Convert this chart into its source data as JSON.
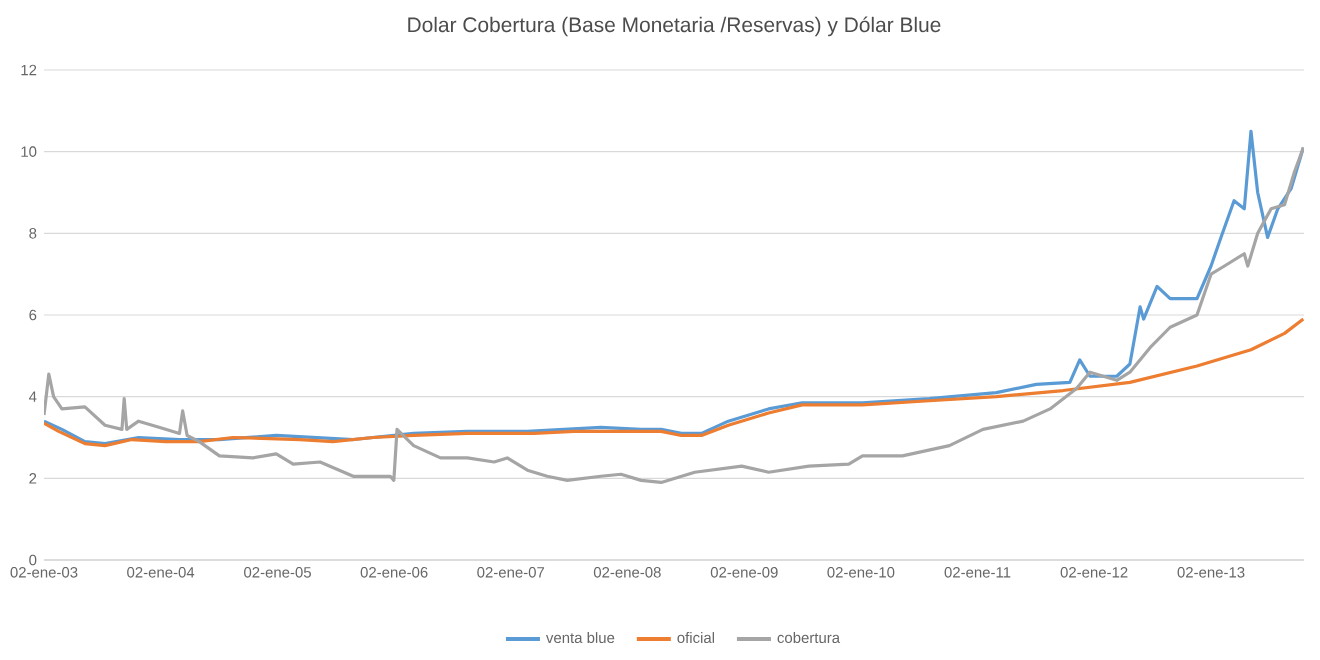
{
  "chart_data": {
    "type": "line",
    "title": "Dolar Cobertura (Base Monetaria /Reservas) y Dólar Blue",
    "xlim": [
      "2003-01-02",
      "2013-10-20"
    ],
    "ylim": [
      0,
      12
    ],
    "yticks": [
      0,
      2,
      4,
      6,
      8,
      10,
      12
    ],
    "xticks": [
      {
        "value": "2003-01-02",
        "label": "02-ene-03"
      },
      {
        "value": "2004-01-02",
        "label": "02-ene-04"
      },
      {
        "value": "2005-01-02",
        "label": "02-ene-05"
      },
      {
        "value": "2006-01-02",
        "label": "02-ene-06"
      },
      {
        "value": "2007-01-02",
        "label": "02-ene-07"
      },
      {
        "value": "2008-01-02",
        "label": "02-ene-08"
      },
      {
        "value": "2009-01-02",
        "label": "02-ene-09"
      },
      {
        "value": "2010-01-02",
        "label": "02-ene-10"
      },
      {
        "value": "2011-01-02",
        "label": "02-ene-11"
      },
      {
        "value": "2012-01-02",
        "label": "02-ene-12"
      },
      {
        "value": "2013-01-02",
        "label": "02-ene-13"
      }
    ],
    "grid": "y",
    "legend": "bottom",
    "marker": "none",
    "line_style": "solid",
    "series": [
      {
        "name": "venta blue",
        "color": "#5b9bd5",
        "x": [
          "2003-01-02",
          "2003-02-27",
          "2003-05-10",
          "2003-07-12",
          "2003-10-25",
          "2004-03-01",
          "2004-07-04",
          "2004-12-29",
          "2005-08-27",
          "2006-03-04",
          "2006-08-19",
          "2007-02-23",
          "2007-10-11",
          "2008-02-14",
          "2008-04-17",
          "2008-06-19",
          "2008-08-21",
          "2008-11-13",
          "2009-03-19",
          "2009-07-02",
          "2010-01-07",
          "2010-08-04",
          "2011-03-02",
          "2011-07-05",
          "2011-10-18",
          "2011-11-18",
          "2011-12-20",
          "2012-03-13",
          "2012-04-23",
          "2012-05-25",
          "2012-06-05",
          "2012-07-17",
          "2012-08-27",
          "2012-11-19",
          "2013-01-02",
          "2013-02-02",
          "2013-03-15",
          "2013-04-16",
          "2013-05-07",
          "2013-05-28",
          "2013-06-28",
          "2013-07-30",
          "2013-09-10",
          "2013-10-18"
        ],
        "values": [
          3.4,
          3.2,
          2.9,
          2.85,
          3.0,
          2.95,
          2.95,
          3.05,
          2.95,
          3.1,
          3.15,
          3.15,
          3.25,
          3.2,
          3.2,
          3.1,
          3.1,
          3.4,
          3.7,
          3.85,
          3.85,
          3.95,
          4.1,
          4.3,
          4.35,
          4.9,
          4.5,
          4.5,
          4.8,
          6.2,
          5.9,
          6.7,
          6.4,
          6.4,
          7.2,
          7.9,
          8.8,
          8.6,
          10.5,
          9.0,
          7.9,
          8.6,
          9.1,
          10.1
        ]
      },
      {
        "name": "oficial",
        "color": "#ed7d31",
        "x": [
          "2003-01-02",
          "2003-02-17",
          "2003-05-10",
          "2003-07-12",
          "2003-10-04",
          "2004-01-18",
          "2004-05-02",
          "2004-08-15",
          "2005-03-13",
          "2005-06-25",
          "2005-10-29",
          "2006-03-04",
          "2006-08-19",
          "2007-03-16",
          "2007-07-19",
          "2008-04-17",
          "2008-06-19",
          "2008-08-21",
          "2008-11-13",
          "2009-03-19",
          "2009-07-02",
          "2010-01-07",
          "2010-08-04",
          "2011-03-02",
          "2011-09-27",
          "2012-04-23",
          "2012-11-19",
          "2013-05-07",
          "2013-08-20",
          "2013-10-18"
        ],
        "values": [
          3.35,
          3.15,
          2.85,
          2.8,
          2.95,
          2.9,
          2.9,
          3.0,
          2.95,
          2.9,
          3.0,
          3.05,
          3.1,
          3.1,
          3.15,
          3.15,
          3.05,
          3.05,
          3.3,
          3.6,
          3.8,
          3.8,
          3.9,
          4.0,
          4.15,
          4.35,
          4.75,
          5.15,
          5.55,
          5.9
        ]
      },
      {
        "name": "cobertura",
        "color": "#a5a5a5",
        "x": [
          "2003-01-02",
          "2003-01-17",
          "2003-02-01",
          "2003-02-27",
          "2003-05-10",
          "2003-07-12",
          "2003-09-03",
          "2003-09-10",
          "2003-09-18",
          "2003-10-25",
          "2003-12-28",
          "2004-03-01",
          "2004-03-11",
          "2004-03-25",
          "2004-05-02",
          "2004-07-04",
          "2004-10-17",
          "2004-12-29",
          "2005-02-20",
          "2005-05-15",
          "2005-08-27",
          "2005-12-21",
          "2006-01-01",
          "2006-01-11",
          "2006-03-04",
          "2006-05-27",
          "2006-08-19",
          "2006-11-11",
          "2006-12-22",
          "2007-02-23",
          "2007-04-26",
          "2007-06-28",
          "2007-10-11",
          "2007-12-13",
          "2008-02-14",
          "2008-04-17",
          "2008-07-31",
          "2008-12-25",
          "2009-03-19",
          "2009-07-23",
          "2009-11-25",
          "2010-01-07",
          "2010-05-12",
          "2010-10-06",
          "2011-01-19",
          "2011-05-25",
          "2011-08-17",
          "2011-11-08",
          "2011-12-20",
          "2012-01-31",
          "2012-03-13",
          "2012-04-23",
          "2012-06-25",
          "2012-08-27",
          "2012-11-19",
          "2013-01-02",
          "2013-02-13",
          "2013-04-16",
          "2013-04-27",
          "2013-05-28",
          "2013-07-09",
          "2013-08-20",
          "2013-09-20",
          "2013-10-18"
        ],
        "values": [
          3.55,
          4.55,
          4.0,
          3.7,
          3.75,
          3.3,
          3.2,
          3.95,
          3.2,
          3.4,
          3.25,
          3.1,
          3.65,
          3.05,
          2.9,
          2.55,
          2.5,
          2.6,
          2.35,
          2.4,
          2.05,
          2.05,
          1.95,
          3.2,
          2.8,
          2.5,
          2.5,
          2.4,
          2.5,
          2.2,
          2.05,
          1.95,
          2.05,
          2.1,
          1.95,
          1.9,
          2.15,
          2.3,
          2.15,
          2.3,
          2.35,
          2.55,
          2.55,
          2.8,
          3.2,
          3.4,
          3.7,
          4.2,
          4.6,
          4.5,
          4.4,
          4.6,
          5.2,
          5.7,
          6.0,
          7.0,
          7.2,
          7.5,
          7.2,
          8.0,
          8.6,
          8.7,
          9.5,
          10.1
        ]
      }
    ]
  }
}
